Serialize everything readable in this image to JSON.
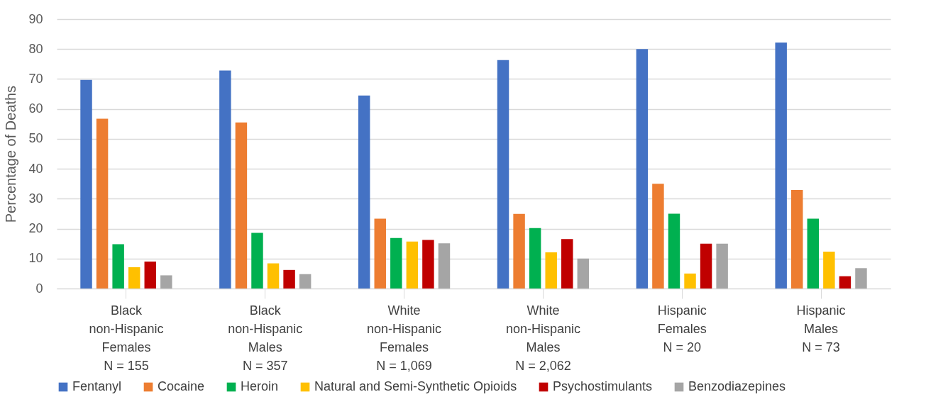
{
  "chart_data": {
    "type": "bar",
    "ylabel": "Percentage of Deaths",
    "categories": [
      "Black\nnon-Hispanic\nFemales\nN = 155",
      "Black\nnon-Hispanic\nMales\nN = 357",
      "White\nnon-Hispanic\nFemales\nN = 1,069",
      "White\nnon-Hispanic\nMales\nN = 2,062",
      "Hispanic\nFemales\nN = 20",
      "Hispanic\nMales\nN = 73"
    ],
    "series": [
      {
        "name": "Fentanyl",
        "color": "#4472c4",
        "values": [
          69.7,
          72.8,
          64.5,
          76.3,
          80,
          82.2
        ]
      },
      {
        "name": "Cocaine",
        "color": "#ed7d31",
        "values": [
          56.7,
          55.5,
          23.3,
          24.9,
          35,
          32.9
        ]
      },
      {
        "name": "Heroin",
        "color": "#00b050",
        "values": [
          14.8,
          18.6,
          16.9,
          20.2,
          25,
          23.3
        ]
      },
      {
        "name": "Natural and Semi-Synthetic Opioids",
        "color": "#ffc000",
        "values": [
          7.1,
          8.4,
          15.7,
          12.1,
          5,
          12.3
        ]
      },
      {
        "name": "Psychostimulants",
        "color": "#c00000",
        "values": [
          9.0,
          6.2,
          16.2,
          16.5,
          15,
          4.1
        ]
      },
      {
        "name": "Benzodiazepines",
        "color": "#a5a5a5",
        "values": [
          4.4,
          4.8,
          15.1,
          10.0,
          15,
          6.8
        ]
      }
    ],
    "ylim": [
      0,
      90
    ],
    "yticks": [
      0,
      10,
      20,
      30,
      40,
      50,
      60,
      70,
      80,
      90
    ],
    "grid": "y",
    "legend": "bottom"
  }
}
